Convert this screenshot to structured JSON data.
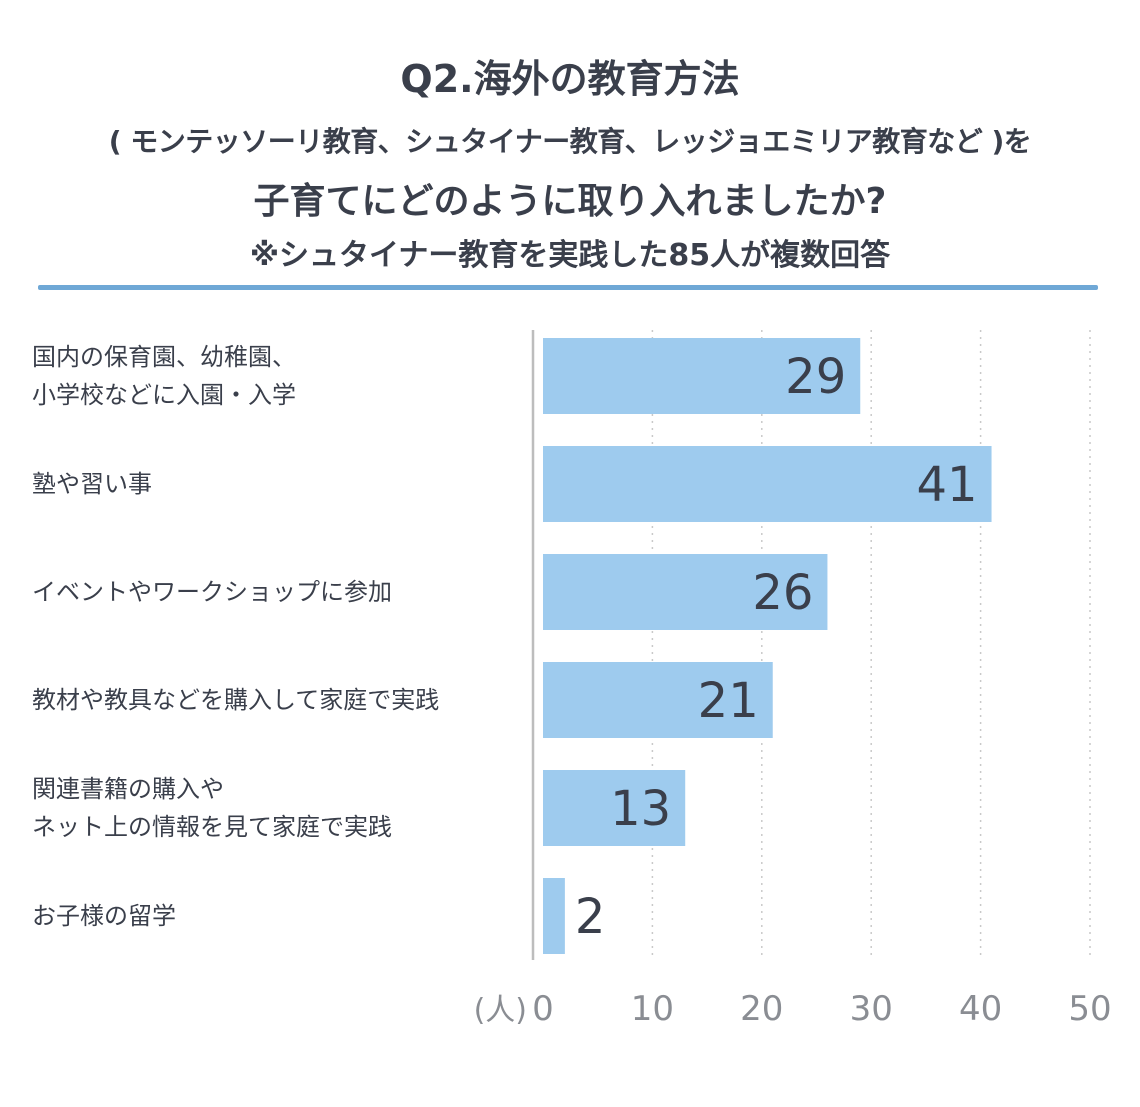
{
  "title": {
    "line1": "Q2.海外の教育方法",
    "line2": "( モンテッソーリ教育、シュタイナー教育、レッジョエミリア教育など )を",
    "line3": "子育てにどのように取り入れましたか?",
    "line4": "※シュタイナー教育を実践した85人が複数回答"
  },
  "chart_data": {
    "type": "bar",
    "orientation": "horizontal",
    "categories": [
      [
        "国内の保育園、幼稚園、",
        "小学校などに入園・入学"
      ],
      [
        "塾や習い事"
      ],
      [
        "イベントやワークショップに参加"
      ],
      [
        "教材や教具などを購入して家庭で実践"
      ],
      [
        "関連書籍の購入や",
        "ネット上の情報を見て家庭で実践"
      ],
      [
        "お子様の留学"
      ]
    ],
    "values": [
      29,
      41,
      26,
      21,
      13,
      2
    ],
    "x_ticks": [
      "0",
      "10",
      "20",
      "30",
      "40",
      "50"
    ],
    "xlim": [
      0,
      50
    ],
    "unit_label": "(人)",
    "grid": "vertical-dotted",
    "bar_color": "#9ecbee",
    "value_label_color": "#3a3f4b"
  }
}
